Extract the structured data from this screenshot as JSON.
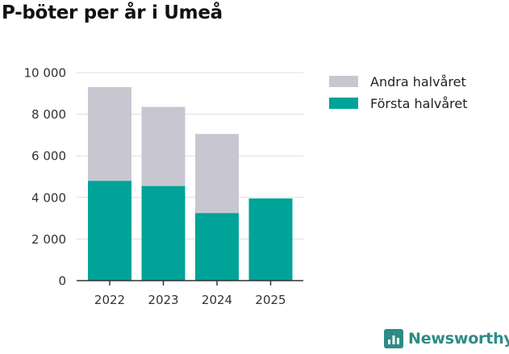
{
  "chart_data": {
    "type": "bar",
    "stacked": true,
    "title": "P-böter per år i Umeå",
    "categories": [
      "2022",
      "2023",
      "2024",
      "2025"
    ],
    "series": [
      {
        "name": "Första halvåret",
        "color": "#00a398",
        "values": [
          4800,
          4550,
          3250,
          3950
        ]
      },
      {
        "name": "Andra halvåret",
        "color": "#c8c7d1",
        "values": [
          4500,
          3800,
          3800,
          0
        ]
      }
    ],
    "y_ticks": [
      "0",
      "2 000",
      "4 000",
      "6 000",
      "8 000",
      "10 000"
    ],
    "ylim": [
      0,
      10000
    ],
    "xlabel": "",
    "ylabel": "",
    "grid": true,
    "legend_position": "top-right"
  },
  "legend": [
    "Andra halvåret",
    "Första halvåret"
  ],
  "brand": {
    "name": "Newsworthy",
    "icon": "newsworthy-bar-chart-icon",
    "color": "#2e8b85"
  }
}
